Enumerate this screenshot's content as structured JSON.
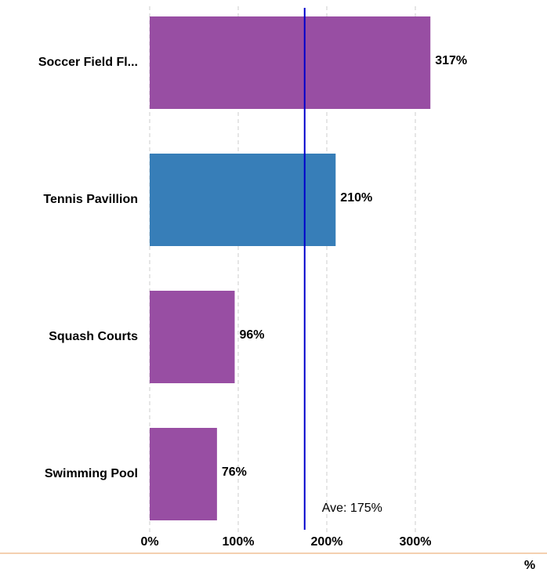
{
  "chart_data": {
    "type": "barh",
    "categories": [
      "Soccer Field Fl...",
      "Tennis Pavillion",
      "Squash Courts",
      "Swimming Pool"
    ],
    "values": [
      317,
      210,
      96,
      76
    ],
    "value_labels": [
      "317%",
      "210%",
      "96%",
      "76%"
    ],
    "colors": [
      "#984ea3",
      "#377eb8",
      "#984ea3",
      "#984ea3"
    ],
    "xlim": [
      0,
      450
    ],
    "xticks": [
      {
        "value": 0,
        "label": "0%"
      },
      {
        "value": 100,
        "label": "100%"
      },
      {
        "value": 200,
        "label": "200%"
      },
      {
        "value": 300,
        "label": "300%"
      }
    ],
    "xlabel": "%",
    "grid": true,
    "average": {
      "value": 175,
      "label": "Ave: 175%",
      "color": "#0000cc"
    }
  }
}
